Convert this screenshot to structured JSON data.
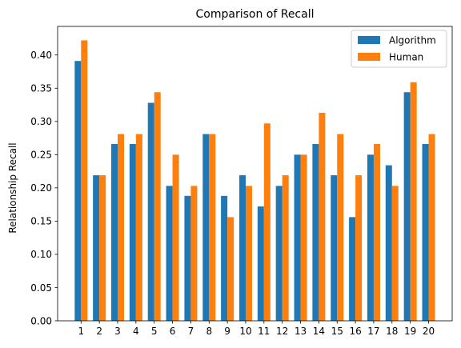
{
  "chart_data": {
    "type": "bar",
    "title": "Comparison of Recall",
    "xlabel": "",
    "ylabel": "Relationship Recall",
    "categories": [
      "1",
      "2",
      "3",
      "4",
      "5",
      "6",
      "7",
      "8",
      "9",
      "10",
      "11",
      "12",
      "13",
      "14",
      "15",
      "16",
      "17",
      "18",
      "19",
      "20"
    ],
    "series": [
      {
        "name": "Algorithm",
        "color": "#1f77b4",
        "values": [
          0.391,
          0.219,
          0.266,
          0.266,
          0.328,
          0.203,
          0.188,
          0.281,
          0.188,
          0.219,
          0.172,
          0.203,
          0.25,
          0.266,
          0.219,
          0.156,
          0.25,
          0.234,
          0.344,
          0.266
        ]
      },
      {
        "name": "Human",
        "color": "#ff7f0e",
        "values": [
          0.422,
          0.219,
          0.281,
          0.281,
          0.344,
          0.25,
          0.203,
          0.281,
          0.156,
          0.203,
          0.297,
          0.219,
          0.25,
          0.313,
          0.281,
          0.219,
          0.266,
          0.203,
          0.359,
          0.281
        ]
      }
    ],
    "yticks": [
      0.0,
      0.05,
      0.1,
      0.15,
      0.2,
      0.25,
      0.3,
      0.35,
      0.4
    ],
    "ytick_labels": [
      "0.00",
      "0.05",
      "0.10",
      "0.15",
      "0.20",
      "0.25",
      "0.30",
      "0.35",
      "0.40"
    ],
    "ylim": [
      0,
      0.443
    ],
    "grid": false,
    "legend_position": "top-right"
  }
}
